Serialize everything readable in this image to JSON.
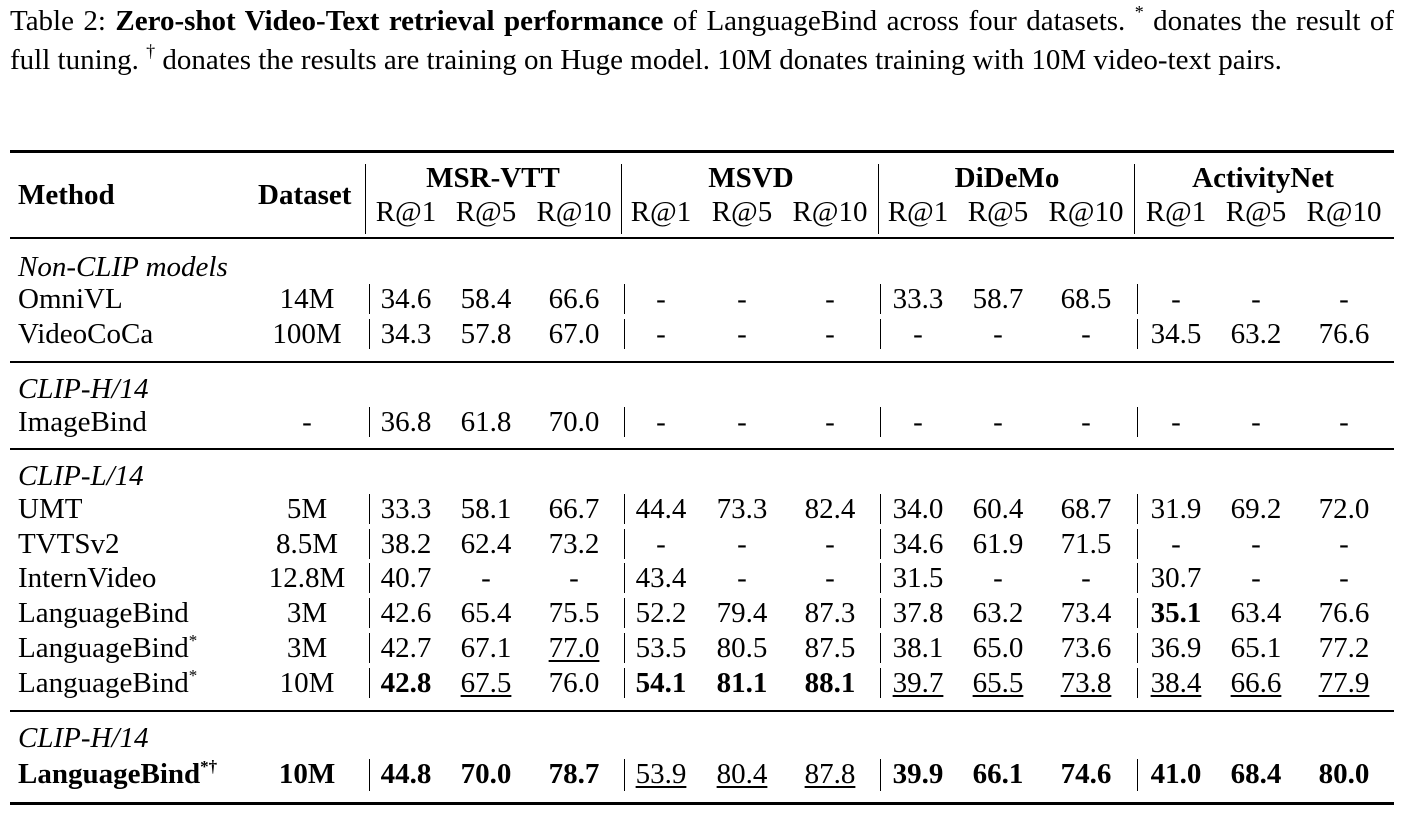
{
  "caption": {
    "label": "Table 2:",
    "bold": "Zero-shot Video-Text retrieval performance",
    "rest1": "of LanguageBind across four datasets.",
    "star": "*",
    "rest2": "donates the result of full tuning.",
    "dagger": "†",
    "rest3": "donates the results are training on Huge model. 10M donates training with 10M video-text pairs."
  },
  "header": {
    "method": "Method",
    "dataset": "Dataset",
    "groups": [
      "MSR-VTT",
      "MSVD",
      "DiDeMo",
      "ActivityNet"
    ],
    "metrics": [
      "R@1",
      "R@5",
      "R@10"
    ]
  },
  "sections": [
    {
      "title": "Non-CLIP models",
      "rows": [
        {
          "method": "OmniVL",
          "sup": "",
          "dataset": "14M",
          "bold": false,
          "values": [
            {
              "v": "34.6"
            },
            {
              "v": "58.4"
            },
            {
              "v": "66.6"
            },
            {
              "v": "-"
            },
            {
              "v": "-"
            },
            {
              "v": "-"
            },
            {
              "v": "33.3"
            },
            {
              "v": "58.7"
            },
            {
              "v": "68.5"
            },
            {
              "v": "-"
            },
            {
              "v": "-"
            },
            {
              "v": "-"
            }
          ]
        },
        {
          "method": "VideoCoCa",
          "sup": "",
          "dataset": "100M",
          "bold": false,
          "values": [
            {
              "v": "34.3"
            },
            {
              "v": "57.8"
            },
            {
              "v": "67.0"
            },
            {
              "v": "-"
            },
            {
              "v": "-"
            },
            {
              "v": "-"
            },
            {
              "v": "-"
            },
            {
              "v": "-"
            },
            {
              "v": "-"
            },
            {
              "v": "34.5"
            },
            {
              "v": "63.2"
            },
            {
              "v": "76.6"
            }
          ]
        }
      ]
    },
    {
      "title": "CLIP-H/14",
      "rows": [
        {
          "method": "ImageBind",
          "sup": "",
          "dataset": "-",
          "bold": false,
          "values": [
            {
              "v": "36.8"
            },
            {
              "v": "61.8"
            },
            {
              "v": "70.0"
            },
            {
              "v": "-"
            },
            {
              "v": "-"
            },
            {
              "v": "-"
            },
            {
              "v": "-"
            },
            {
              "v": "-"
            },
            {
              "v": "-"
            },
            {
              "v": "-"
            },
            {
              "v": "-"
            },
            {
              "v": "-"
            }
          ]
        }
      ]
    },
    {
      "title": "CLIP-L/14",
      "rows": [
        {
          "method": "UMT",
          "sup": "",
          "dataset": "5M",
          "bold": false,
          "values": [
            {
              "v": "33.3"
            },
            {
              "v": "58.1"
            },
            {
              "v": "66.7"
            },
            {
              "v": "44.4"
            },
            {
              "v": "73.3"
            },
            {
              "v": "82.4"
            },
            {
              "v": "34.0"
            },
            {
              "v": "60.4"
            },
            {
              "v": "68.7"
            },
            {
              "v": "31.9"
            },
            {
              "v": "69.2"
            },
            {
              "v": "72.0"
            }
          ]
        },
        {
          "method": "TVTSv2",
          "sup": "",
          "dataset": "8.5M",
          "bold": false,
          "values": [
            {
              "v": "38.2"
            },
            {
              "v": "62.4"
            },
            {
              "v": "73.2"
            },
            {
              "v": "-"
            },
            {
              "v": "-"
            },
            {
              "v": "-"
            },
            {
              "v": "34.6"
            },
            {
              "v": "61.9"
            },
            {
              "v": "71.5"
            },
            {
              "v": "-"
            },
            {
              "v": "-"
            },
            {
              "v": "-"
            }
          ]
        },
        {
          "method": "InternVideo",
          "sup": "",
          "dataset": "12.8M",
          "bold": false,
          "values": [
            {
              "v": "40.7"
            },
            {
              "v": "-"
            },
            {
              "v": "-"
            },
            {
              "v": "43.4"
            },
            {
              "v": "-"
            },
            {
              "v": "-"
            },
            {
              "v": "31.5"
            },
            {
              "v": "-"
            },
            {
              "v": "-"
            },
            {
              "v": "30.7"
            },
            {
              "v": "-"
            },
            {
              "v": "-"
            }
          ]
        },
        {
          "method": "LanguageBind",
          "sup": "",
          "dataset": "3M",
          "bold": false,
          "values": [
            {
              "v": "42.6"
            },
            {
              "v": "65.4"
            },
            {
              "v": "75.5"
            },
            {
              "v": "52.2"
            },
            {
              "v": "79.4"
            },
            {
              "v": "87.3"
            },
            {
              "v": "37.8"
            },
            {
              "v": "63.2"
            },
            {
              "v": "73.4"
            },
            {
              "v": "35.1",
              "b": true
            },
            {
              "v": "63.4"
            },
            {
              "v": "76.6"
            }
          ]
        },
        {
          "method": "LanguageBind",
          "sup": "*",
          "dataset": "3M",
          "bold": false,
          "values": [
            {
              "v": "42.7"
            },
            {
              "v": "67.1"
            },
            {
              "v": "77.0",
              "u": true
            },
            {
              "v": "53.5"
            },
            {
              "v": "80.5"
            },
            {
              "v": "87.5"
            },
            {
              "v": "38.1"
            },
            {
              "v": "65.0"
            },
            {
              "v": "73.6"
            },
            {
              "v": "36.9"
            },
            {
              "v": "65.1"
            },
            {
              "v": "77.2"
            }
          ]
        },
        {
          "method": "LanguageBind",
          "sup": "*",
          "dataset": "10M",
          "bold": false,
          "values": [
            {
              "v": "42.8",
              "b": true
            },
            {
              "v": "67.5",
              "u": true
            },
            {
              "v": "76.0"
            },
            {
              "v": "54.1",
              "b": true
            },
            {
              "v": "81.1",
              "b": true
            },
            {
              "v": "88.1",
              "b": true
            },
            {
              "v": "39.7",
              "u": true
            },
            {
              "v": "65.5",
              "u": true
            },
            {
              "v": "73.8",
              "u": true
            },
            {
              "v": "38.4",
              "u": true
            },
            {
              "v": "66.6",
              "u": true
            },
            {
              "v": "77.9",
              "u": true
            }
          ]
        }
      ]
    },
    {
      "title": "CLIP-H/14",
      "rows": [
        {
          "method": "LanguageBind",
          "sup": "*†",
          "dataset": "10M",
          "bold": true,
          "values": [
            {
              "v": "44.8",
              "b": true
            },
            {
              "v": "70.0",
              "b": true
            },
            {
              "v": "78.7",
              "b": true
            },
            {
              "v": "53.9",
              "u": true
            },
            {
              "v": "80.4",
              "u": true
            },
            {
              "v": "87.8",
              "u": true
            },
            {
              "v": "39.9",
              "b": true
            },
            {
              "v": "66.1",
              "b": true
            },
            {
              "v": "74.6",
              "b": true
            },
            {
              "v": "41.0",
              "b": true
            },
            {
              "v": "68.4",
              "b": true
            },
            {
              "v": "80.0",
              "b": true
            }
          ]
        }
      ]
    }
  ]
}
